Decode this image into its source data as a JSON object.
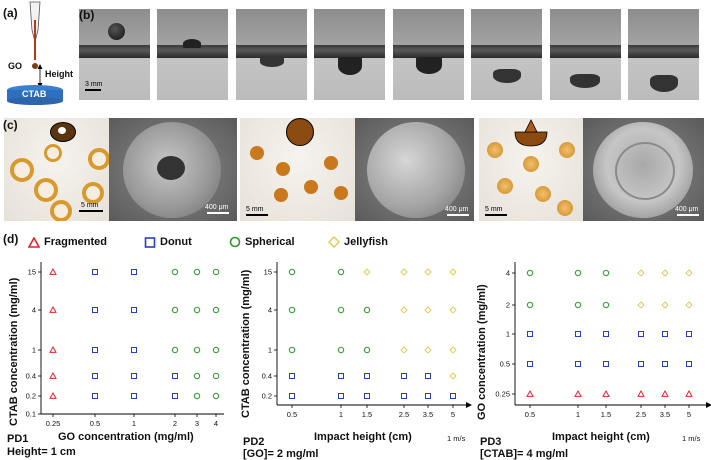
{
  "panel_labels": {
    "a": "(a)",
    "b": "(b)",
    "c": "(c)",
    "d": "(d)"
  },
  "schematic": {
    "go_label": "GO",
    "height_label": "Height",
    "bath_label": "CTAB"
  },
  "strip_scale": "3 mm",
  "photo_scales": {
    "optical": "5 mm",
    "sem": "400 μm"
  },
  "legend": [
    {
      "label": "Fragmented",
      "marker": "triangle",
      "color": "#e0262b"
    },
    {
      "label": "Donut",
      "marker": "square",
      "color": "#2a3fbf"
    },
    {
      "label": "Spherical",
      "marker": "circle",
      "color": "#2a9a2a"
    },
    {
      "label": "Jellyfish",
      "marker": "diamond",
      "color": "#e8c84a"
    }
  ],
  "plots": {
    "pd1": {
      "ylabel": "CTAB concentration (mg/ml)",
      "xlabel": "GO concentration (mg/ml)",
      "yticks": [
        "15",
        "4",
        "1",
        "0.4",
        "0.2",
        "0.1"
      ],
      "xticks": [
        "0.25",
        "0.5",
        "1",
        "2",
        "3",
        "4"
      ],
      "tag": "PD1",
      "subtitle": "Height= 1 cm"
    },
    "pd2": {
      "ylabel": "CTAB concentration (mg/ml)",
      "xlabel": "Impact height (cm)",
      "yticks": [
        "15",
        "4",
        "1",
        "0.4",
        "0.2"
      ],
      "xticks": [
        "0.5",
        "1",
        "1.5",
        "2.5",
        "3.5",
        "5"
      ],
      "x_unit_tick": "1 m/s",
      "tag": "PD2",
      "subtitle": "[GO]= 2 mg/ml"
    },
    "pd3": {
      "ylabel": "GO concentration (mg/ml)",
      "xlabel": "Impact height (cm)",
      "yticks": [
        "4",
        "2",
        "1",
        "0.5",
        "0.25"
      ],
      "xticks": [
        "0.5",
        "1",
        "1.5",
        "2.5",
        "3.5",
        "5"
      ],
      "x_unit_tick": "1 m/s",
      "tag": "PD3",
      "subtitle": "[CTAB]= 4 mg/ml"
    }
  },
  "chart_data": [
    {
      "type": "scatter",
      "title": "",
      "xlabel": "GO concentration (mg/ml)",
      "ylabel": "CTAB concentration (mg/ml)",
      "x_scale": "categorical",
      "categories_x": [
        "0.25",
        "0.5",
        "1",
        "2",
        "3",
        "4"
      ],
      "categories_y": [
        "15",
        "4",
        "1",
        "0.4",
        "0.2"
      ],
      "points": [
        {
          "x": "0.25",
          "y": "15",
          "class": "Fragmented"
        },
        {
          "x": "0.25",
          "y": "4",
          "class": "Fragmented"
        },
        {
          "x": "0.25",
          "y": "1",
          "class": "Fragmented"
        },
        {
          "x": "0.25",
          "y": "0.4",
          "class": "Fragmented"
        },
        {
          "x": "0.25",
          "y": "0.2",
          "class": "Fragmented"
        },
        {
          "x": "0.5",
          "y": "15",
          "class": "Donut"
        },
        {
          "x": "0.5",
          "y": "4",
          "class": "Donut"
        },
        {
          "x": "0.5",
          "y": "1",
          "class": "Donut"
        },
        {
          "x": "0.5",
          "y": "0.4",
          "class": "Donut"
        },
        {
          "x": "0.5",
          "y": "0.2",
          "class": "Donut"
        },
        {
          "x": "1",
          "y": "15",
          "class": "Donut"
        },
        {
          "x": "1",
          "y": "4",
          "class": "Donut"
        },
        {
          "x": "1",
          "y": "1",
          "class": "Donut"
        },
        {
          "x": "1",
          "y": "0.4",
          "class": "Donut"
        },
        {
          "x": "1",
          "y": "0.2",
          "class": "Donut"
        },
        {
          "x": "2",
          "y": "15",
          "class": "Spherical"
        },
        {
          "x": "2",
          "y": "4",
          "class": "Spherical"
        },
        {
          "x": "2",
          "y": "1",
          "class": "Spherical"
        },
        {
          "x": "2",
          "y": "0.4",
          "class": "Donut"
        },
        {
          "x": "2",
          "y": "0.2",
          "class": "Donut"
        },
        {
          "x": "3",
          "y": "15",
          "class": "Spherical"
        },
        {
          "x": "3",
          "y": "4",
          "class": "Spherical"
        },
        {
          "x": "3",
          "y": "1",
          "class": "Spherical"
        },
        {
          "x": "3",
          "y": "0.4",
          "class": "Spherical"
        },
        {
          "x": "3",
          "y": "0.2",
          "class": "Spherical"
        },
        {
          "x": "4",
          "y": "15",
          "class": "Spherical"
        },
        {
          "x": "4",
          "y": "4",
          "class": "Spherical"
        },
        {
          "x": "4",
          "y": "1",
          "class": "Spherical"
        },
        {
          "x": "4",
          "y": "0.4",
          "class": "Spherical"
        },
        {
          "x": "4",
          "y": "0.2",
          "class": "Spherical"
        }
      ]
    },
    {
      "type": "scatter",
      "title": "",
      "xlabel": "Impact height (cm)",
      "ylabel": "CTAB concentration (mg/ml)",
      "categories_x": [
        "0.5",
        "1",
        "1.5",
        "2.5",
        "3.5",
        "5"
      ],
      "categories_y": [
        "15",
        "4",
        "1",
        "0.4",
        "0.2"
      ],
      "points": [
        {
          "x": "0.5",
          "y": "15",
          "class": "Spherical"
        },
        {
          "x": "0.5",
          "y": "4",
          "class": "Spherical"
        },
        {
          "x": "0.5",
          "y": "1",
          "class": "Spherical"
        },
        {
          "x": "0.5",
          "y": "0.4",
          "class": "Donut"
        },
        {
          "x": "0.5",
          "y": "0.2",
          "class": "Donut"
        },
        {
          "x": "1",
          "y": "15",
          "class": "Spherical"
        },
        {
          "x": "1",
          "y": "4",
          "class": "Spherical"
        },
        {
          "x": "1",
          "y": "1",
          "class": "Spherical"
        },
        {
          "x": "1",
          "y": "0.4",
          "class": "Donut"
        },
        {
          "x": "1",
          "y": "0.2",
          "class": "Donut"
        },
        {
          "x": "1.5",
          "y": "15",
          "class": "Jellyfish"
        },
        {
          "x": "1.5",
          "y": "4",
          "class": "Spherical"
        },
        {
          "x": "1.5",
          "y": "1",
          "class": "Spherical"
        },
        {
          "x": "1.5",
          "y": "0.4",
          "class": "Donut"
        },
        {
          "x": "1.5",
          "y": "0.2",
          "class": "Donut"
        },
        {
          "x": "2.5",
          "y": "15",
          "class": "Jellyfish"
        },
        {
          "x": "2.5",
          "y": "4",
          "class": "Jellyfish"
        },
        {
          "x": "2.5",
          "y": "1",
          "class": "Jellyfish"
        },
        {
          "x": "2.5",
          "y": "0.4",
          "class": "Donut"
        },
        {
          "x": "2.5",
          "y": "0.2",
          "class": "Donut"
        },
        {
          "x": "3.5",
          "y": "15",
          "class": "Jellyfish"
        },
        {
          "x": "3.5",
          "y": "4",
          "class": "Jellyfish"
        },
        {
          "x": "3.5",
          "y": "1",
          "class": "Jellyfish"
        },
        {
          "x": "3.5",
          "y": "0.4",
          "class": "Donut"
        },
        {
          "x": "3.5",
          "y": "0.2",
          "class": "Donut"
        },
        {
          "x": "5",
          "y": "15",
          "class": "Jellyfish"
        },
        {
          "x": "5",
          "y": "4",
          "class": "Jellyfish"
        },
        {
          "x": "5",
          "y": "1",
          "class": "Jellyfish"
        },
        {
          "x": "5",
          "y": "0.4",
          "class": "Jellyfish"
        },
        {
          "x": "5",
          "y": "0.2",
          "class": "Donut"
        }
      ]
    },
    {
      "type": "scatter",
      "title": "",
      "xlabel": "Impact height (cm)",
      "ylabel": "GO concentration (mg/ml)",
      "categories_x": [
        "0.5",
        "1",
        "1.5",
        "2.5",
        "3.5",
        "5"
      ],
      "categories_y": [
        "4",
        "2",
        "1",
        "0.5",
        "0.25"
      ],
      "points": [
        {
          "x": "0.5",
          "y": "4",
          "class": "Spherical"
        },
        {
          "x": "0.5",
          "y": "2",
          "class": "Spherical"
        },
        {
          "x": "0.5",
          "y": "1",
          "class": "Donut"
        },
        {
          "x": "0.5",
          "y": "0.5",
          "class": "Donut"
        },
        {
          "x": "0.5",
          "y": "0.25",
          "class": "Fragmented"
        },
        {
          "x": "1",
          "y": "4",
          "class": "Spherical"
        },
        {
          "x": "1",
          "y": "2",
          "class": "Spherical"
        },
        {
          "x": "1",
          "y": "1",
          "class": "Donut"
        },
        {
          "x": "1",
          "y": "0.5",
          "class": "Donut"
        },
        {
          "x": "1",
          "y": "0.25",
          "class": "Fragmented"
        },
        {
          "x": "1.5",
          "y": "4",
          "class": "Spherical"
        },
        {
          "x": "1.5",
          "y": "2",
          "class": "Spherical"
        },
        {
          "x": "1.5",
          "y": "1",
          "class": "Donut"
        },
        {
          "x": "1.5",
          "y": "0.5",
          "class": "Donut"
        },
        {
          "x": "1.5",
          "y": "0.25",
          "class": "Fragmented"
        },
        {
          "x": "2.5",
          "y": "4",
          "class": "Jellyfish"
        },
        {
          "x": "2.5",
          "y": "2",
          "class": "Jellyfish"
        },
        {
          "x": "2.5",
          "y": "1",
          "class": "Donut"
        },
        {
          "x": "2.5",
          "y": "0.5",
          "class": "Donut"
        },
        {
          "x": "2.5",
          "y": "0.25",
          "class": "Fragmented"
        },
        {
          "x": "3.5",
          "y": "4",
          "class": "Jellyfish"
        },
        {
          "x": "3.5",
          "y": "2",
          "class": "Jellyfish"
        },
        {
          "x": "3.5",
          "y": "1",
          "class": "Donut"
        },
        {
          "x": "3.5",
          "y": "0.5",
          "class": "Donut"
        },
        {
          "x": "3.5",
          "y": "0.25",
          "class": "Fragmented"
        },
        {
          "x": "5",
          "y": "4",
          "class": "Jellyfish"
        },
        {
          "x": "5",
          "y": "2",
          "class": "Jellyfish"
        },
        {
          "x": "5",
          "y": "1",
          "class": "Donut"
        },
        {
          "x": "5",
          "y": "0.5",
          "class": "Donut"
        },
        {
          "x": "5",
          "y": "0.25",
          "class": "Fragmented"
        }
      ]
    }
  ]
}
